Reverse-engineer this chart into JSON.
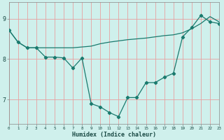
{
  "xlabel": "Humidex (Indice chaleur)",
  "background_color": "#cff0ec",
  "grid_color": "#e8a0a0",
  "line_color": "#1a7a6e",
  "x_values": [
    0,
    1,
    2,
    3,
    4,
    5,
    6,
    7,
    8,
    9,
    10,
    11,
    12,
    13,
    14,
    15,
    16,
    17,
    18,
    19,
    20,
    21,
    22,
    23
  ],
  "line1": [
    8.72,
    8.42,
    8.28,
    8.28,
    8.05,
    8.05,
    8.03,
    7.78,
    8.03,
    6.9,
    6.82,
    6.68,
    6.58,
    7.05,
    7.05,
    7.42,
    7.42,
    7.55,
    7.65,
    8.55,
    8.78,
    9.08,
    8.92,
    8.88
  ],
  "line2": [
    8.72,
    8.42,
    8.28,
    8.28,
    8.28,
    8.28,
    8.28,
    8.28,
    8.3,
    8.32,
    8.38,
    8.42,
    8.45,
    8.48,
    8.5,
    8.52,
    8.55,
    8.58,
    8.6,
    8.65,
    8.75,
    8.88,
    9.05,
    8.92
  ],
  "ylim": [
    6.4,
    9.4
  ],
  "yticks": [
    7,
    8,
    9
  ],
  "xlim": [
    0,
    23
  ]
}
